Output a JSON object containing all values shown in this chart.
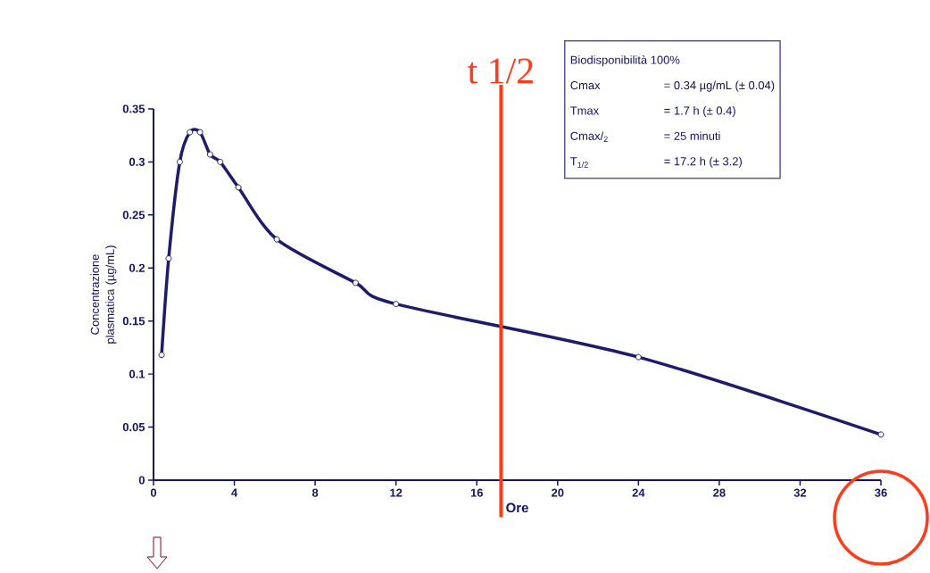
{
  "chart_data": {
    "type": "line",
    "xlabel": "Ore",
    "ylabel": "Concentrazione plasmatica (µg/mL)",
    "x": [
      0.4,
      0.75,
      1.3,
      1.8,
      2.3,
      2.8,
      3.3,
      4.2,
      6.1,
      10,
      12,
      24,
      36
    ],
    "series": [
      {
        "color": "#1c1c6b",
        "values": [
          0.118,
          0.209,
          0.3,
          0.328,
          0.328,
          0.307,
          0.3,
          0.276,
          0.227,
          0.186,
          0.166,
          0.116,
          0.043
        ]
      }
    ],
    "xlim": [
      0,
      36
    ],
    "ylim": [
      0,
      0.35
    ],
    "xticks": [
      0,
      4,
      8,
      12,
      16,
      20,
      24,
      28,
      32,
      36
    ],
    "yticks": [
      0,
      0.05,
      0.1,
      0.15,
      0.2,
      0.25,
      0.3,
      0.35
    ],
    "marker": "circle",
    "line_style": "solid",
    "ref_lines": [
      {
        "axis": "x",
        "value": 17.2,
        "label": "t 1/2",
        "color": "#ff3b1a"
      }
    ],
    "annotations": [
      "Biodisponibilità  100%",
      "Cmax",
      "= 0.34 µg/mL (± 0.04)",
      "Tmax",
      "= 1.7 h (± 0.4)",
      "Cmax/$_{2}$",
      "= 25 minuti",
      "T$_{1/2}$",
      "= 17.2 h (± 3.2)"
    ]
  }
}
